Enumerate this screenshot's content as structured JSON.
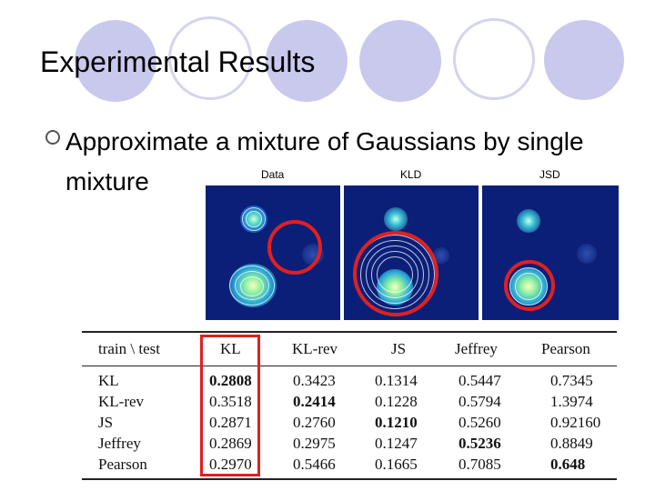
{
  "slide": {
    "title": "Experimental Results",
    "bullet": "Approximate a mixture of Gaussians by single mixture"
  },
  "figure": {
    "panels": [
      {
        "label": "Data"
      },
      {
        "label": "KLD"
      },
      {
        "label": "JSD"
      }
    ],
    "colors": {
      "background": "#0c1f78",
      "highlight": "#e02020"
    }
  },
  "table": {
    "headers": [
      "train \\ test",
      "KL",
      "KL-rev",
      "JS",
      "Jeffrey",
      "Pearson"
    ],
    "rows": [
      {
        "label": "KL",
        "values": [
          "0.2808",
          "0.3423",
          "0.1314",
          "0.5447",
          "0.7345"
        ],
        "bold": [
          0
        ]
      },
      {
        "label": "KL-rev",
        "values": [
          "0.3518",
          "0.2414",
          "0.1228",
          "0.5794",
          "1.3974"
        ],
        "bold": [
          1
        ]
      },
      {
        "label": "JS",
        "values": [
          "0.2871",
          "0.2760",
          "0.1210",
          "0.5260",
          "0.92160"
        ],
        "bold": [
          2
        ]
      },
      {
        "label": "Jeffrey",
        "values": [
          "0.2869",
          "0.2975",
          "0.1247",
          "0.5236",
          "0.8849"
        ],
        "bold": [
          3
        ]
      },
      {
        "label": "Pearson",
        "values": [
          "0.2970",
          "0.5466",
          "0.1665",
          "0.7085",
          "0.648"
        ],
        "bold": [
          4
        ]
      }
    ]
  }
}
